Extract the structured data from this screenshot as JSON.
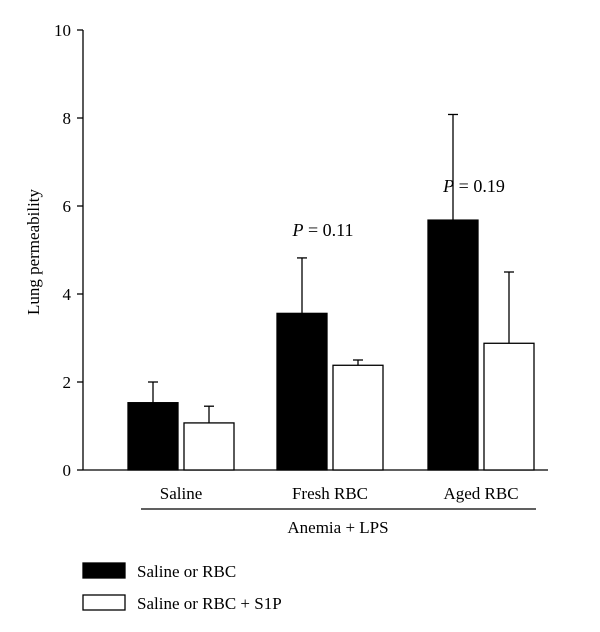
{
  "chart_data": {
    "type": "bar",
    "ylabel": "Lung permeability",
    "ylim": [
      0,
      10
    ],
    "yticks": [
      0,
      2,
      4,
      6,
      8,
      10
    ],
    "categories": [
      "Saline",
      "Fresh RBC",
      "Aged RBC"
    ],
    "group_label": "Anemia + LPS",
    "series": [
      {
        "name": "Saline or RBC",
        "color": "#000000",
        "values": [
          1.53,
          3.56,
          5.68
        ],
        "errors": [
          0.47,
          1.26,
          2.4
        ]
      },
      {
        "name": "Saline or RBC + S1P",
        "color": "#ffffff",
        "values": [
          1.07,
          2.38,
          2.88
        ],
        "errors": [
          0.38,
          0.12,
          1.62
        ]
      }
    ],
    "annotations": [
      {
        "category": "Fresh RBC",
        "p_symbol": "P",
        "p_text": " = 0.11",
        "y": 5.45
      },
      {
        "category": "Aged RBC",
        "p_symbol": "P",
        "p_text": " = 0.19",
        "y": 6.45
      }
    ],
    "legend_position": "bottom-left",
    "grid": false
  }
}
